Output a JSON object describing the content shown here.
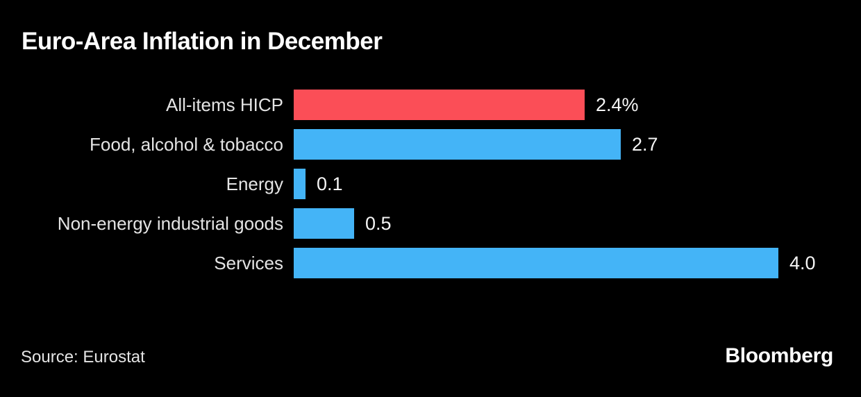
{
  "title": "Euro-Area Inflation in December",
  "source": "Source: Eurostat",
  "brand": "Bloomberg",
  "colors": {
    "background": "#000000",
    "highlight_bar": "#FB4E57",
    "default_bar": "#44B4F7",
    "title_text": "#FFFFFF",
    "label_text": "#E4E4E4",
    "value_text": "#F5F5F5"
  },
  "chart_data": {
    "type": "bar",
    "orientation": "horizontal",
    "title": "Euro-Area Inflation in December",
    "categories": [
      "All-items HICP",
      "Food, alcohol & tobacco",
      "Energy",
      "Non-energy industrial goods",
      "Services"
    ],
    "values": [
      2.4,
      2.7,
      0.1,
      0.5,
      4.0
    ],
    "value_labels": [
      "2.4%",
      "2.7",
      "0.1",
      "0.5",
      "4.0"
    ],
    "bar_colors": [
      "#FB4E57",
      "#44B4F7",
      "#44B4F7",
      "#44B4F7",
      "#44B4F7"
    ],
    "unit": "%",
    "xlim": [
      0,
      4.0
    ],
    "grid": false,
    "legend": false,
    "source_note": "Source: Eurostat"
  }
}
